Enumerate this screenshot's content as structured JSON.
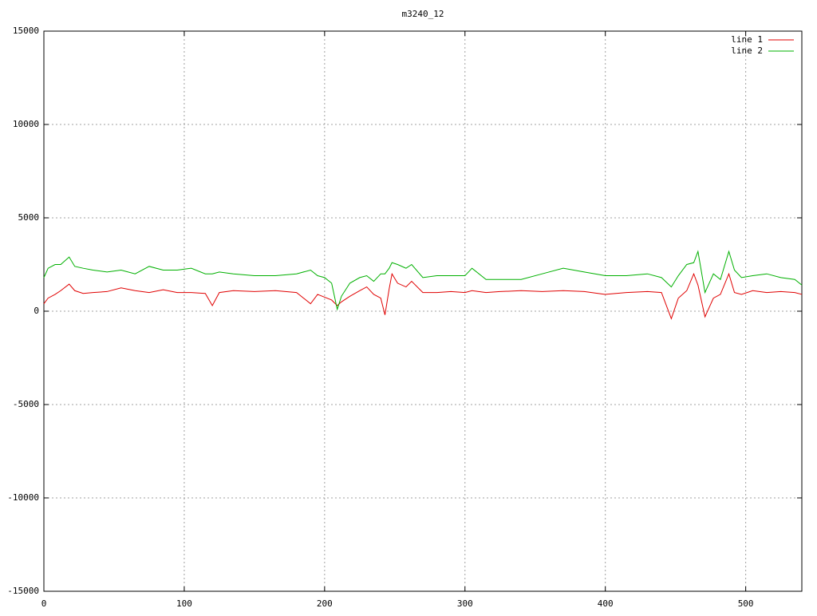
{
  "chart_data": {
    "type": "line",
    "title": "m3240_12",
    "x": [
      0,
      3,
      8,
      12,
      18,
      22,
      28,
      35,
      45,
      55,
      65,
      75,
      85,
      95,
      105,
      115,
      120,
      125,
      135,
      150,
      165,
      180,
      190,
      195,
      200,
      205,
      209,
      212,
      218,
      225,
      230,
      235,
      240,
      243,
      246,
      248,
      252,
      258,
      262,
      270,
      280,
      290,
      300,
      305,
      315,
      325,
      340,
      355,
      370,
      385,
      400,
      415,
      430,
      440,
      447,
      452,
      458,
      463,
      466,
      471,
      477,
      482,
      488,
      492,
      497,
      505,
      515,
      525,
      535,
      540
    ],
    "series": [
      {
        "name": "line 1",
        "color": "#e00000",
        "values": [
          400,
          700,
          900,
          1100,
          1450,
          1100,
          950,
          1000,
          1050,
          1250,
          1100,
          1000,
          1150,
          1000,
          1000,
          950,
          300,
          1000,
          1100,
          1050,
          1100,
          1000,
          400,
          900,
          750,
          600,
          300,
          500,
          800,
          1100,
          1300,
          900,
          700,
          -200,
          1200,
          2000,
          1500,
          1300,
          1600,
          1000,
          1000,
          1050,
          1000,
          1100,
          1000,
          1050,
          1100,
          1050,
          1100,
          1050,
          900,
          1000,
          1050,
          1000,
          -400,
          700,
          1100,
          2000,
          1400,
          -300,
          700,
          900,
          2000,
          1000,
          900,
          1100,
          1000,
          1050,
          1000,
          900
        ]
      },
      {
        "name": "line 2",
        "color": "#00b000",
        "values": [
          1800,
          2300,
          2500,
          2500,
          2900,
          2400,
          2300,
          2200,
          2100,
          2200,
          2000,
          2400,
          2200,
          2200,
          2300,
          2000,
          2000,
          2100,
          2000,
          1900,
          1900,
          2000,
          2200,
          1900,
          1800,
          1500,
          100,
          800,
          1500,
          1800,
          1900,
          1600,
          2000,
          2000,
          2300,
          2600,
          2500,
          2300,
          2500,
          1800,
          1900,
          1900,
          1900,
          2300,
          1700,
          1700,
          1700,
          2000,
          2300,
          2100,
          1900,
          1900,
          2000,
          1800,
          1300,
          1900,
          2500,
          2600,
          3200,
          1000,
          2000,
          1700,
          3200,
          2200,
          1800,
          1900,
          2000,
          1800,
          1700,
          1400
        ]
      }
    ],
    "xlim": [
      0,
      540
    ],
    "xticks": [
      0,
      100,
      200,
      300,
      400,
      500
    ],
    "ylim": [
      -15000,
      15000
    ],
    "yticks": [
      -15000,
      -10000,
      -5000,
      0,
      5000,
      10000,
      15000
    ],
    "grid": true,
    "legend": "top-right"
  }
}
